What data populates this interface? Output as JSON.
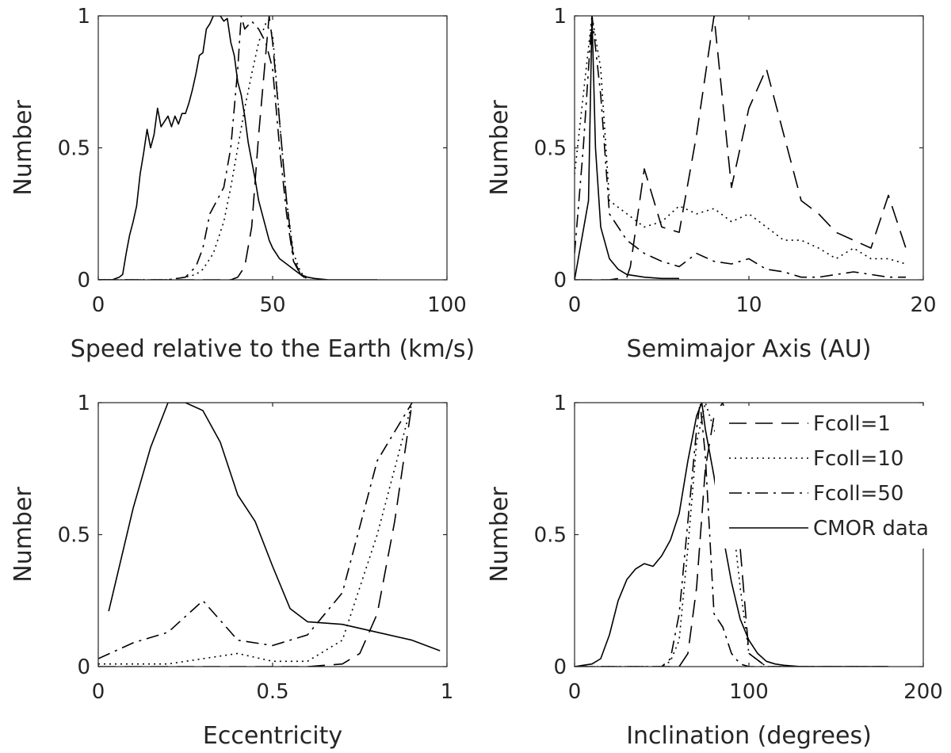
{
  "chart_data": [
    {
      "type": "line",
      "xlabel": "Speed relative to the Earth (km/s)",
      "ylabel": "Number",
      "xlim": [
        0,
        100
      ],
      "ylim": [
        0,
        1
      ],
      "xticks": [
        0,
        50,
        100
      ],
      "xtick_labels": [
        "0",
        "50",
        "100"
      ],
      "yticks": [
        0,
        0.5,
        1
      ],
      "ytick_labels": [
        "0",
        "0.5",
        "1"
      ],
      "grid": false,
      "series": [
        {
          "name": "Fcoll=1",
          "style": "dashed",
          "x": [
            0,
            10,
            20,
            30,
            35,
            38,
            40,
            42,
            44,
            46,
            48,
            49,
            50,
            52,
            54,
            56,
            58,
            60
          ],
          "y": [
            0,
            0,
            0,
            0,
            0,
            0,
            0.01,
            0.05,
            0.2,
            0.55,
            0.85,
            1.0,
            0.9,
            0.6,
            0.3,
            0.08,
            0.02,
            0
          ]
        },
        {
          "name": "Fcoll=10",
          "style": "dotted",
          "x": [
            0,
            10,
            20,
            25,
            28,
            30,
            33,
            36,
            38,
            40,
            42,
            44,
            46,
            48,
            50,
            52,
            54,
            56,
            58,
            60
          ],
          "y": [
            0,
            0,
            0,
            0.01,
            0.02,
            0.04,
            0.1,
            0.22,
            0.35,
            0.5,
            0.65,
            0.78,
            0.9,
            0.97,
            0.93,
            0.6,
            0.3,
            0.1,
            0.03,
            0
          ]
        },
        {
          "name": "Fcoll=50",
          "style": "dashdot",
          "x": [
            0,
            10,
            20,
            25,
            28,
            30,
            32,
            34,
            36,
            38,
            40,
            41,
            42,
            44,
            46,
            48,
            50,
            52,
            54,
            56,
            58,
            60
          ],
          "y": [
            0,
            0,
            0,
            0.01,
            0.05,
            0.12,
            0.25,
            0.3,
            0.35,
            0.5,
            0.8,
            1.0,
            0.95,
            0.98,
            0.95,
            0.9,
            0.8,
            0.5,
            0.25,
            0.07,
            0.02,
            0
          ]
        },
        {
          "name": "CMOR data",
          "style": "solid",
          "x": [
            0,
            4,
            6,
            7,
            8,
            9,
            10,
            11,
            12,
            13,
            14,
            15,
            16,
            17,
            18,
            19,
            20,
            21,
            22,
            23,
            24,
            25,
            26,
            27,
            28,
            29,
            30,
            31,
            32,
            33,
            34,
            35,
            36,
            37,
            38,
            39,
            40,
            41,
            42,
            43,
            44,
            45,
            46,
            47,
            48,
            49,
            50,
            52,
            54,
            56,
            58,
            60,
            62,
            66,
            70,
            80
          ],
          "y": [
            0,
            0,
            0.01,
            0.02,
            0.1,
            0.17,
            0.22,
            0.28,
            0.4,
            0.48,
            0.57,
            0.5,
            0.55,
            0.65,
            0.58,
            0.6,
            0.62,
            0.58,
            0.62,
            0.59,
            0.63,
            0.63,
            0.67,
            0.72,
            0.78,
            0.85,
            0.86,
            0.95,
            0.97,
            1.0,
            1.0,
            1.0,
            0.98,
            0.99,
            0.9,
            0.85,
            0.75,
            0.7,
            0.62,
            0.52,
            0.45,
            0.38,
            0.3,
            0.25,
            0.2,
            0.15,
            0.12,
            0.08,
            0.06,
            0.04,
            0.02,
            0.01,
            0.005,
            0,
            0,
            0
          ]
        }
      ]
    },
    {
      "type": "line",
      "xlabel": "Semimajor Axis (AU)",
      "ylabel": "Number",
      "xlim": [
        0,
        20
      ],
      "ylim": [
        0,
        1
      ],
      "xticks": [
        0,
        10,
        20
      ],
      "xtick_labels": [
        "0",
        "10",
        "20"
      ],
      "yticks": [
        0,
        0.5,
        1
      ],
      "ytick_labels": [
        "0",
        "0.5",
        "1"
      ],
      "grid": false,
      "series": [
        {
          "name": "Fcoll=1",
          "style": "dashed",
          "x": [
            0,
            1,
            2,
            3,
            3.2,
            4,
            5,
            6,
            7,
            8,
            9,
            10,
            11,
            12,
            13,
            14,
            15,
            16,
            17,
            18,
            19
          ],
          "y": [
            0,
            0,
            0,
            0.01,
            0.05,
            0.42,
            0.2,
            0.18,
            0.55,
            1.0,
            0.35,
            0.65,
            0.8,
            0.55,
            0.3,
            0.25,
            0.18,
            0.15,
            0.12,
            0.32,
            0.12
          ]
        },
        {
          "name": "Fcoll=10",
          "style": "dotted",
          "x": [
            0,
            0.5,
            1,
            1.5,
            2,
            3,
            4,
            5,
            6,
            7,
            8,
            9,
            10,
            11,
            12,
            13,
            14,
            15,
            16,
            17,
            18,
            19
          ],
          "y": [
            0.4,
            0.7,
            1.0,
            0.8,
            0.3,
            0.25,
            0.2,
            0.22,
            0.28,
            0.25,
            0.27,
            0.22,
            0.25,
            0.2,
            0.15,
            0.15,
            0.12,
            0.08,
            0.12,
            0.08,
            0.08,
            0.06
          ]
        },
        {
          "name": "Fcoll=50",
          "style": "dashdot",
          "x": [
            0,
            0.5,
            1,
            1.5,
            2,
            3,
            4,
            5,
            6,
            7,
            8,
            9,
            10,
            11,
            12,
            13,
            14,
            15,
            16,
            17,
            18,
            19
          ],
          "y": [
            0.1,
            0.5,
            1.0,
            0.7,
            0.25,
            0.15,
            0.1,
            0.07,
            0.05,
            0.1,
            0.07,
            0.06,
            0.08,
            0.04,
            0.03,
            0.01,
            0.01,
            0.02,
            0.03,
            0.02,
            0.01,
            0.01
          ]
        },
        {
          "name": "CMOR data",
          "style": "solid",
          "x": [
            0,
            0.8,
            1,
            1.2,
            1.5,
            2,
            2.5,
            3,
            4,
            5,
            6
          ],
          "y": [
            0,
            0.3,
            1.0,
            0.5,
            0.2,
            0.08,
            0.04,
            0.02,
            0.01,
            0.005,
            0.005
          ]
        }
      ]
    },
    {
      "type": "line",
      "xlabel": "Eccentricity",
      "ylabel": "Number",
      "xlim": [
        0,
        1
      ],
      "ylim": [
        0,
        1
      ],
      "xticks": [
        0,
        0.5,
        1
      ],
      "xtick_labels": [
        "0",
        "0.5",
        "1"
      ],
      "yticks": [
        0,
        0.5,
        1
      ],
      "ytick_labels": [
        "0",
        "0.5",
        "1"
      ],
      "grid": false,
      "series": [
        {
          "name": "Fcoll=1",
          "style": "dashed",
          "x": [
            0,
            0.6,
            0.7,
            0.75,
            0.8,
            0.85,
            0.9
          ],
          "y": [
            0,
            0,
            0.01,
            0.05,
            0.2,
            0.55,
            1.0
          ]
        },
        {
          "name": "Fcoll=10",
          "style": "dotted",
          "x": [
            0,
            0.1,
            0.2,
            0.3,
            0.4,
            0.5,
            0.6,
            0.7,
            0.8,
            0.9
          ],
          "y": [
            0.01,
            0.01,
            0.01,
            0.03,
            0.05,
            0.02,
            0.02,
            0.1,
            0.5,
            1.0
          ]
        },
        {
          "name": "Fcoll=50",
          "style": "dashdot",
          "x": [
            0,
            0.1,
            0.2,
            0.3,
            0.4,
            0.5,
            0.6,
            0.7,
            0.8,
            0.9
          ],
          "y": [
            0.03,
            0.09,
            0.13,
            0.25,
            0.1,
            0.08,
            0.12,
            0.28,
            0.78,
            1.0
          ]
        },
        {
          "name": "CMOR data",
          "style": "solid",
          "x": [
            0.03,
            0.1,
            0.15,
            0.2,
            0.25,
            0.3,
            0.35,
            0.4,
            0.45,
            0.5,
            0.55,
            0.6,
            0.7,
            0.8,
            0.9,
            0.98
          ],
          "y": [
            0.21,
            0.6,
            0.83,
            1.0,
            1.0,
            0.97,
            0.85,
            0.65,
            0.55,
            0.38,
            0.22,
            0.17,
            0.16,
            0.13,
            0.1,
            0.06
          ]
        }
      ]
    },
    {
      "type": "line",
      "xlabel": "Inclination (degrees)",
      "ylabel": "Number",
      "xlim": [
        0,
        200
      ],
      "ylim": [
        0,
        1
      ],
      "xticks": [
        0,
        100,
        200
      ],
      "xtick_labels": [
        "0",
        "100",
        "200"
      ],
      "yticks": [
        0,
        0.5,
        1
      ],
      "ytick_labels": [
        "0",
        "0.5",
        "1"
      ],
      "grid": false,
      "legend": {
        "location": "top-right",
        "entries": [
          "Fcoll=1",
          "Fcoll=10",
          "Fcoll=50",
          "CMOR data"
        ]
      },
      "series": [
        {
          "name": "Fcoll=1",
          "style": "dashed",
          "x": [
            0,
            60,
            65,
            70,
            75,
            80,
            85,
            90,
            95,
            100,
            110,
            180
          ],
          "y": [
            0,
            0,
            0.05,
            0.3,
            0.75,
            0.95,
            1.0,
            0.85,
            0.45,
            0.05,
            0,
            0
          ]
        },
        {
          "name": "Fcoll=10",
          "style": "dotted",
          "x": [
            0,
            50,
            55,
            60,
            65,
            70,
            75,
            80,
            85,
            90,
            95,
            100,
            110,
            180
          ],
          "y": [
            0,
            0,
            0.02,
            0.1,
            0.45,
            0.85,
            1.0,
            0.9,
            0.8,
            0.6,
            0.3,
            0.05,
            0,
            0
          ]
        },
        {
          "name": "Fcoll=50",
          "style": "dashdot",
          "x": [
            0,
            50,
            55,
            60,
            65,
            70,
            72,
            75,
            80,
            85,
            90,
            95,
            100,
            180
          ],
          "y": [
            0,
            0,
            0.03,
            0.2,
            0.55,
            0.9,
            1.0,
            0.8,
            0.2,
            0.15,
            0.05,
            0.01,
            0,
            0
          ]
        },
        {
          "name": "CMOR data",
          "style": "solid",
          "x": [
            0,
            5,
            10,
            15,
            20,
            25,
            30,
            35,
            40,
            45,
            50,
            55,
            60,
            65,
            70,
            73,
            75,
            80,
            85,
            90,
            95,
            100,
            105,
            110,
            115,
            120,
            130,
            180
          ],
          "y": [
            0,
            0.005,
            0.01,
            0.03,
            0.12,
            0.25,
            0.33,
            0.37,
            0.39,
            0.38,
            0.42,
            0.48,
            0.58,
            0.78,
            0.95,
            1.0,
            0.9,
            0.72,
            0.5,
            0.32,
            0.18,
            0.1,
            0.05,
            0.02,
            0.01,
            0.005,
            0,
            0
          ]
        }
      ]
    }
  ]
}
